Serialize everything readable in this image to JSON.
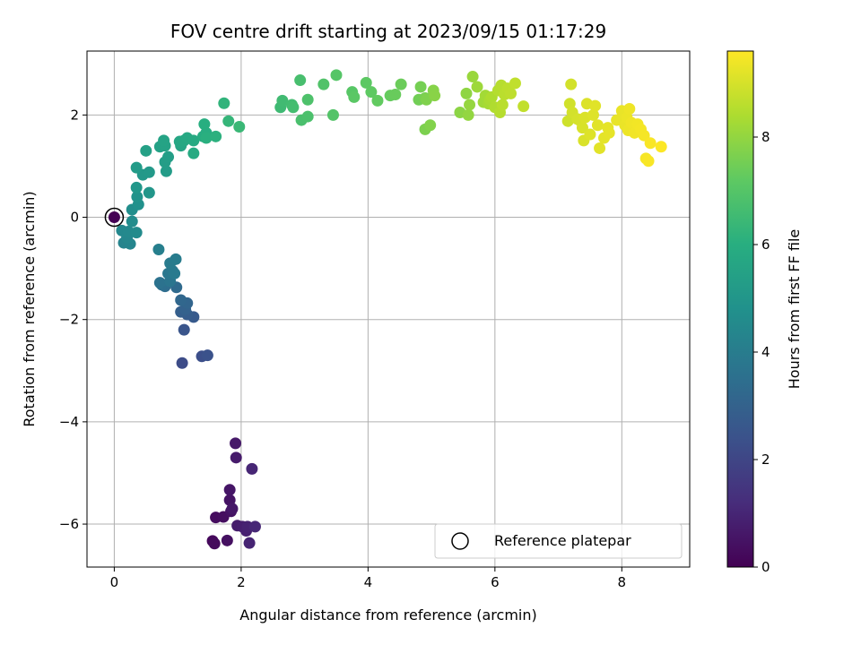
{
  "chart_data": {
    "type": "scatter",
    "title": "FOV centre drift starting at 2023/09/15 01:17:29",
    "xlabel": "Angular distance from reference (arcmin)",
    "ylabel": "Rotation from reference (arcmin)",
    "xlim": [
      -0.43,
      9.07
    ],
    "ylim": [
      -6.84,
      3.25
    ],
    "xticks": [
      0,
      2,
      4,
      6,
      8
    ],
    "yticks": [
      -6,
      -4,
      -2,
      0,
      2
    ],
    "xtick_labels": [
      "0",
      "2",
      "4",
      "6",
      "8"
    ],
    "ytick_labels": [
      "−6",
      "−4",
      "−2",
      "0",
      "2"
    ],
    "grid": true,
    "legend": {
      "placement": "lower-right",
      "entries": [
        {
          "label": "Reference platepar",
          "marker": "open-circle"
        }
      ]
    },
    "colorbar": {
      "label": "Hours from first FF file",
      "colormap": "viridis",
      "range": [
        0,
        9.6
      ],
      "ticks": [
        0,
        2,
        4,
        6,
        8
      ],
      "tick_labels": [
        "0",
        "2",
        "4",
        "6",
        "8"
      ]
    },
    "reference_point": {
      "x": 0,
      "y": 0,
      "hours": 0
    },
    "points": [
      {
        "x": 1.55,
        "y": -6.33,
        "t": 0.2
      },
      {
        "x": 1.58,
        "y": -6.38,
        "t": 0.25
      },
      {
        "x": 1.6,
        "y": -5.87,
        "t": 0.3
      },
      {
        "x": 1.72,
        "y": -5.86,
        "t": 0.35
      },
      {
        "x": 1.78,
        "y": -6.32,
        "t": 0.4
      },
      {
        "x": 1.84,
        "y": -5.75,
        "t": 0.45
      },
      {
        "x": 1.82,
        "y": -5.53,
        "t": 0.5
      },
      {
        "x": 1.82,
        "y": -5.33,
        "t": 0.55
      },
      {
        "x": 1.86,
        "y": -5.7,
        "t": 0.6
      },
      {
        "x": 1.91,
        "y": -4.42,
        "t": 0.65
      },
      {
        "x": 1.92,
        "y": -4.7,
        "t": 0.7
      },
      {
        "x": 1.94,
        "y": -6.03,
        "t": 0.75
      },
      {
        "x": 2.02,
        "y": -6.05,
        "t": 0.8
      },
      {
        "x": 2.08,
        "y": -6.13,
        "t": 0.85
      },
      {
        "x": 2.1,
        "y": -6.05,
        "t": 0.9
      },
      {
        "x": 2.13,
        "y": -6.37,
        "t": 0.95
      },
      {
        "x": 2.17,
        "y": -4.92,
        "t": 1.0
      },
      {
        "x": 2.22,
        "y": -6.05,
        "t": 1.05
      },
      {
        "x": 1.07,
        "y": -2.85,
        "t": 2.2
      },
      {
        "x": 1.38,
        "y": -2.72,
        "t": 2.3
      },
      {
        "x": 1.47,
        "y": -2.7,
        "t": 2.4
      },
      {
        "x": 1.1,
        "y": -2.2,
        "t": 2.5
      },
      {
        "x": 1.25,
        "y": -1.95,
        "t": 2.7
      },
      {
        "x": 1.15,
        "y": -1.9,
        "t": 2.8
      },
      {
        "x": 1.05,
        "y": -1.85,
        "t": 2.9
      },
      {
        "x": 1.12,
        "y": -1.8,
        "t": 3.0
      },
      {
        "x": 1.15,
        "y": -1.68,
        "t": 3.1
      },
      {
        "x": 1.05,
        "y": -1.62,
        "t": 3.2
      },
      {
        "x": 0.98,
        "y": -1.37,
        "t": 3.3
      },
      {
        "x": 0.8,
        "y": -1.35,
        "t": 3.4
      },
      {
        "x": 0.75,
        "y": -1.32,
        "t": 3.5
      },
      {
        "x": 0.72,
        "y": -1.28,
        "t": 3.6
      },
      {
        "x": 0.88,
        "y": -1.25,
        "t": 3.7
      },
      {
        "x": 0.85,
        "y": -1.1,
        "t": 3.8
      },
      {
        "x": 0.92,
        "y": -1.05,
        "t": 3.85
      },
      {
        "x": 0.95,
        "y": -1.1,
        "t": 3.9
      },
      {
        "x": 0.88,
        "y": -0.9,
        "t": 3.95
      },
      {
        "x": 0.97,
        "y": -0.82,
        "t": 4.0
      },
      {
        "x": 0.7,
        "y": -0.63,
        "t": 4.1
      },
      {
        "x": 0.15,
        "y": -0.5,
        "t": 4.3
      },
      {
        "x": 0.25,
        "y": -0.52,
        "t": 4.35
      },
      {
        "x": 0.2,
        "y": -0.4,
        "t": 4.4
      },
      {
        "x": 0.12,
        "y": -0.26,
        "t": 4.45
      },
      {
        "x": 0.22,
        "y": -0.28,
        "t": 4.5
      },
      {
        "x": 0.35,
        "y": -0.3,
        "t": 4.55
      },
      {
        "x": 0.28,
        "y": -0.08,
        "t": 4.6
      },
      {
        "x": 0.28,
        "y": 0.15,
        "t": 4.7
      },
      {
        "x": 0.38,
        "y": 0.25,
        "t": 4.8
      },
      {
        "x": 0.36,
        "y": 0.4,
        "t": 4.9
      },
      {
        "x": 0.55,
        "y": 0.48,
        "t": 5.0
      },
      {
        "x": 0.35,
        "y": 0.58,
        "t": 5.05
      },
      {
        "x": 0.45,
        "y": 0.83,
        "t": 5.1
      },
      {
        "x": 0.55,
        "y": 0.88,
        "t": 5.15
      },
      {
        "x": 0.35,
        "y": 0.97,
        "t": 5.2
      },
      {
        "x": 0.82,
        "y": 0.9,
        "t": 5.25
      },
      {
        "x": 0.8,
        "y": 1.08,
        "t": 5.3
      },
      {
        "x": 0.85,
        "y": 1.18,
        "t": 5.35
      },
      {
        "x": 0.5,
        "y": 1.3,
        "t": 5.4
      },
      {
        "x": 0.72,
        "y": 1.38,
        "t": 5.45
      },
      {
        "x": 0.8,
        "y": 1.4,
        "t": 5.5
      },
      {
        "x": 0.78,
        "y": 1.5,
        "t": 5.55
      },
      {
        "x": 1.05,
        "y": 1.4,
        "t": 5.6
      },
      {
        "x": 1.03,
        "y": 1.48,
        "t": 5.65
      },
      {
        "x": 1.1,
        "y": 1.5,
        "t": 5.7
      },
      {
        "x": 1.15,
        "y": 1.55,
        "t": 5.75
      },
      {
        "x": 1.25,
        "y": 1.5,
        "t": 5.8
      },
      {
        "x": 1.25,
        "y": 1.25,
        "t": 5.85
      },
      {
        "x": 1.4,
        "y": 1.58,
        "t": 5.9
      },
      {
        "x": 1.45,
        "y": 1.65,
        "t": 5.95
      },
      {
        "x": 1.42,
        "y": 1.82,
        "t": 6.0
      },
      {
        "x": 1.45,
        "y": 1.55,
        "t": 6.05
      },
      {
        "x": 1.6,
        "y": 1.58,
        "t": 6.1
      },
      {
        "x": 1.73,
        "y": 2.23,
        "t": 6.2
      },
      {
        "x": 1.8,
        "y": 1.88,
        "t": 6.3
      },
      {
        "x": 1.97,
        "y": 1.77,
        "t": 6.4
      },
      {
        "x": 2.62,
        "y": 2.15,
        "t": 6.5
      },
      {
        "x": 2.65,
        "y": 2.28,
        "t": 6.55
      },
      {
        "x": 2.8,
        "y": 2.2,
        "t": 6.6
      },
      {
        "x": 2.82,
        "y": 2.15,
        "t": 6.65
      },
      {
        "x": 2.93,
        "y": 2.68,
        "t": 6.7
      },
      {
        "x": 2.95,
        "y": 1.9,
        "t": 6.75
      },
      {
        "x": 3.05,
        "y": 1.97,
        "t": 6.8
      },
      {
        "x": 3.05,
        "y": 2.3,
        "t": 6.85
      },
      {
        "x": 3.3,
        "y": 2.6,
        "t": 6.9
      },
      {
        "x": 3.45,
        "y": 2.0,
        "t": 6.95
      },
      {
        "x": 3.5,
        "y": 2.78,
        "t": 7.0
      },
      {
        "x": 3.75,
        "y": 2.45,
        "t": 7.05
      },
      {
        "x": 3.78,
        "y": 2.35,
        "t": 7.1
      },
      {
        "x": 3.97,
        "y": 2.63,
        "t": 7.15
      },
      {
        "x": 4.05,
        "y": 2.45,
        "t": 7.2
      },
      {
        "x": 4.15,
        "y": 2.28,
        "t": 7.25
      },
      {
        "x": 4.35,
        "y": 2.38,
        "t": 7.3
      },
      {
        "x": 4.43,
        "y": 2.4,
        "t": 7.35
      },
      {
        "x": 4.52,
        "y": 2.6,
        "t": 7.4
      },
      {
        "x": 4.8,
        "y": 2.3,
        "t": 7.5
      },
      {
        "x": 4.83,
        "y": 2.55,
        "t": 7.55
      },
      {
        "x": 4.9,
        "y": 2.33,
        "t": 7.6
      },
      {
        "x": 4.9,
        "y": 1.72,
        "t": 7.65
      },
      {
        "x": 4.92,
        "y": 2.3,
        "t": 7.7
      },
      {
        "x": 4.98,
        "y": 1.8,
        "t": 7.75
      },
      {
        "x": 5.03,
        "y": 2.48,
        "t": 7.8
      },
      {
        "x": 5.05,
        "y": 2.38,
        "t": 7.85
      },
      {
        "x": 5.45,
        "y": 2.05,
        "t": 7.9
      },
      {
        "x": 5.55,
        "y": 2.42,
        "t": 7.95
      },
      {
        "x": 5.58,
        "y": 2.0,
        "t": 8.0
      },
      {
        "x": 5.6,
        "y": 2.2,
        "t": 8.05
      },
      {
        "x": 5.65,
        "y": 2.75,
        "t": 8.1
      },
      {
        "x": 5.72,
        "y": 2.55,
        "t": 8.15
      },
      {
        "x": 5.82,
        "y": 2.25,
        "t": 8.2
      },
      {
        "x": 5.85,
        "y": 2.38,
        "t": 8.25
      },
      {
        "x": 5.9,
        "y": 2.22,
        "t": 8.3
      },
      {
        "x": 5.92,
        "y": 2.3,
        "t": 8.35
      },
      {
        "x": 5.95,
        "y": 2.35,
        "t": 8.4
      },
      {
        "x": 6.0,
        "y": 2.15,
        "t": 8.45
      },
      {
        "x": 6.05,
        "y": 2.48,
        "t": 8.5
      },
      {
        "x": 6.08,
        "y": 2.05,
        "t": 8.52
      },
      {
        "x": 6.1,
        "y": 2.58,
        "t": 8.55
      },
      {
        "x": 6.12,
        "y": 2.2,
        "t": 8.58
      },
      {
        "x": 6.15,
        "y": 2.4,
        "t": 8.6
      },
      {
        "x": 6.2,
        "y": 2.52,
        "t": 8.62
      },
      {
        "x": 6.25,
        "y": 2.42,
        "t": 8.65
      },
      {
        "x": 6.32,
        "y": 2.62,
        "t": 8.68
      },
      {
        "x": 6.45,
        "y": 2.17,
        "t": 8.7
      },
      {
        "x": 7.15,
        "y": 1.88,
        "t": 8.9
      },
      {
        "x": 7.18,
        "y": 2.22,
        "t": 8.92
      },
      {
        "x": 7.2,
        "y": 2.6,
        "t": 8.95
      },
      {
        "x": 7.22,
        "y": 2.05,
        "t": 8.97
      },
      {
        "x": 7.3,
        "y": 1.92,
        "t": 9.0
      },
      {
        "x": 7.35,
        "y": 1.88,
        "t": 9.02
      },
      {
        "x": 7.38,
        "y": 1.75,
        "t": 9.04
      },
      {
        "x": 7.4,
        "y": 1.5,
        "t": 9.06
      },
      {
        "x": 7.42,
        "y": 1.95,
        "t": 9.08
      },
      {
        "x": 7.45,
        "y": 2.22,
        "t": 9.1
      },
      {
        "x": 7.5,
        "y": 1.62,
        "t": 9.12
      },
      {
        "x": 7.55,
        "y": 2.0,
        "t": 9.14
      },
      {
        "x": 7.58,
        "y": 2.18,
        "t": 9.16
      },
      {
        "x": 7.62,
        "y": 1.8,
        "t": 9.18
      },
      {
        "x": 7.65,
        "y": 1.35,
        "t": 9.2
      },
      {
        "x": 7.72,
        "y": 1.55,
        "t": 9.22
      },
      {
        "x": 7.78,
        "y": 1.75,
        "t": 9.24
      },
      {
        "x": 7.8,
        "y": 1.65,
        "t": 9.26
      },
      {
        "x": 7.92,
        "y": 1.9,
        "t": 9.28
      },
      {
        "x": 8.0,
        "y": 2.08,
        "t": 9.3
      },
      {
        "x": 8.05,
        "y": 1.8,
        "t": 9.32
      },
      {
        "x": 8.08,
        "y": 1.95,
        "t": 9.34
      },
      {
        "x": 8.1,
        "y": 1.7,
        "t": 9.36
      },
      {
        "x": 8.12,
        "y": 2.12,
        "t": 9.38
      },
      {
        "x": 8.15,
        "y": 1.85,
        "t": 9.4
      },
      {
        "x": 8.2,
        "y": 1.65,
        "t": 9.42
      },
      {
        "x": 8.25,
        "y": 1.82,
        "t": 9.44
      },
      {
        "x": 8.3,
        "y": 1.72,
        "t": 9.46
      },
      {
        "x": 8.35,
        "y": 1.6,
        "t": 9.48
      },
      {
        "x": 8.38,
        "y": 1.15,
        "t": 9.5
      },
      {
        "x": 8.42,
        "y": 1.1,
        "t": 9.52
      },
      {
        "x": 8.45,
        "y": 1.45,
        "t": 9.54
      },
      {
        "x": 8.62,
        "y": 1.38,
        "t": 9.58
      }
    ]
  }
}
